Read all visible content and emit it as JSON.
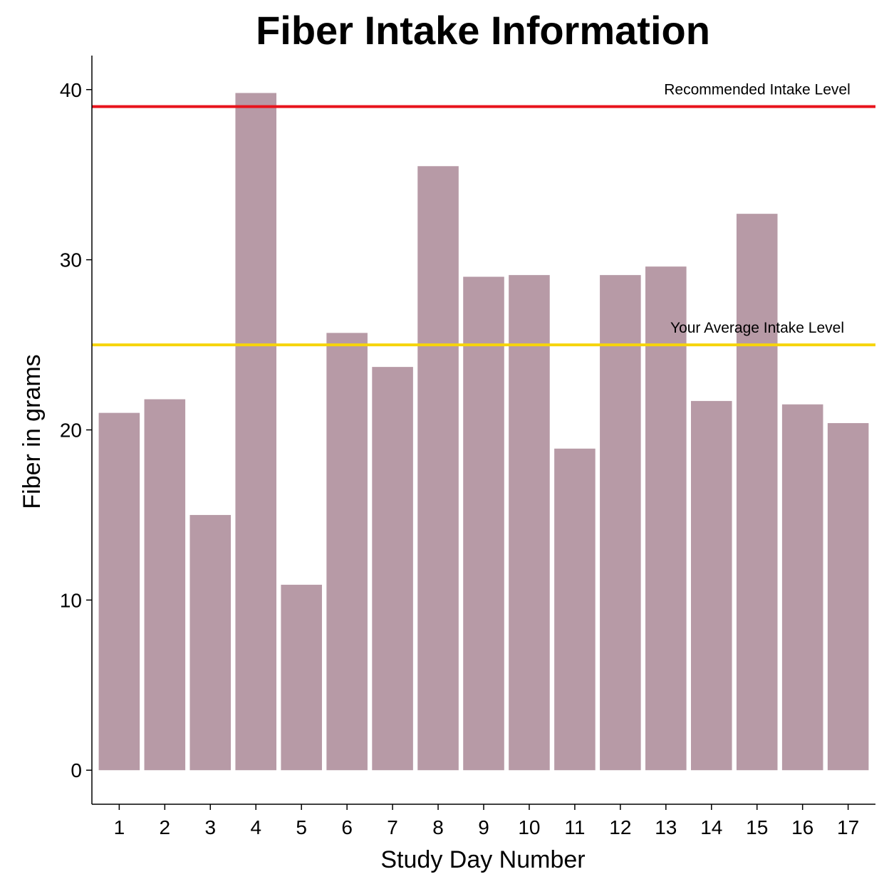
{
  "chart_data": {
    "type": "bar",
    "title": "Fiber Intake Information",
    "xlabel": "Study Day Number",
    "ylabel": "Fiber in grams",
    "categories": [
      "1",
      "2",
      "3",
      "4",
      "5",
      "6",
      "7",
      "8",
      "9",
      "10",
      "11",
      "12",
      "13",
      "14",
      "15",
      "16",
      "17"
    ],
    "values": [
      21.0,
      21.8,
      15.0,
      39.8,
      10.9,
      25.7,
      23.7,
      35.5,
      29.0,
      29.1,
      18.9,
      29.1,
      29.6,
      21.7,
      32.7,
      21.5,
      20.4
    ],
    "ylim": [
      -2,
      42
    ],
    "yticks": [
      0,
      10,
      20,
      30,
      40
    ],
    "grid": false,
    "colors": {
      "bar": "#b79aa6",
      "recommended": "#e8141c",
      "average": "#f6d40b"
    },
    "reference_lines": [
      {
        "label": "Recommended Intake Level",
        "value": 39,
        "color": "#e8141c"
      },
      {
        "label": "Your Average Intake Level",
        "value": 25,
        "color": "#f6d40b"
      }
    ]
  }
}
